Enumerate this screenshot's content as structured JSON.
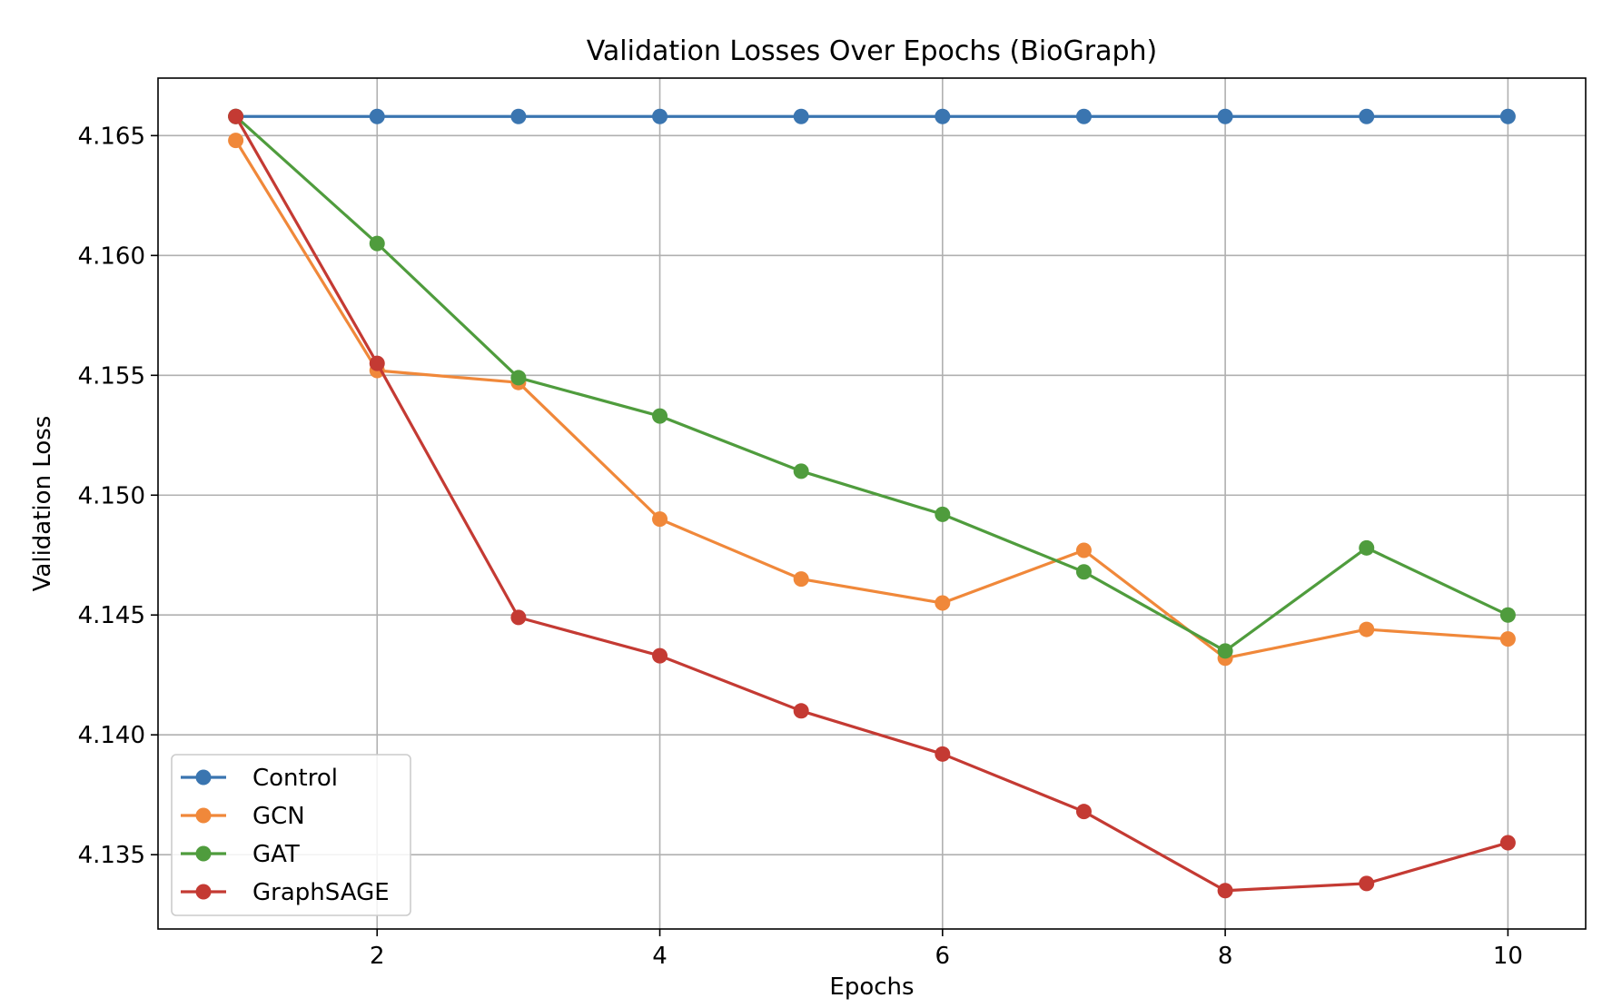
{
  "chart_data": {
    "type": "line",
    "title": "Validation Losses Over Epochs (BioGraph)",
    "xlabel": "Epochs",
    "ylabel": "Validation Loss",
    "x": [
      1,
      2,
      3,
      4,
      5,
      6,
      7,
      8,
      9,
      10
    ],
    "xlim": [
      0.45,
      10.55
    ],
    "ylim": [
      4.1319,
      4.1674
    ],
    "xticks": [
      2,
      4,
      6,
      8,
      10
    ],
    "yticks": [
      4.135,
      4.14,
      4.145,
      4.15,
      4.155,
      4.16,
      4.165
    ],
    "ytick_labels": [
      "4.135",
      "4.140",
      "4.145",
      "4.150",
      "4.155",
      "4.160",
      "4.165"
    ],
    "grid": true,
    "legend_position": "lower-left",
    "series": [
      {
        "name": "Control",
        "color": "#3a75b0",
        "values": [
          4.1658,
          4.1658,
          4.1658,
          4.1658,
          4.1658,
          4.1658,
          4.1658,
          4.1658,
          4.1658,
          4.1658
        ]
      },
      {
        "name": "GCN",
        "color": "#f0883a",
        "values": [
          4.1648,
          4.1552,
          4.1547,
          4.149,
          4.1465,
          4.1455,
          4.1477,
          4.1432,
          4.1444,
          4.144
        ]
      },
      {
        "name": "GAT",
        "color": "#4f9c3d",
        "values": [
          4.1658,
          4.1605,
          4.1549,
          4.1533,
          4.151,
          4.1492,
          4.1468,
          4.1435,
          4.1478,
          4.145
        ]
      },
      {
        "name": "GraphSAGE",
        "color": "#c43a33",
        "values": [
          4.1658,
          4.1555,
          4.1449,
          4.1433,
          4.141,
          4.1392,
          4.1368,
          4.1335,
          4.1338,
          4.1355
        ]
      }
    ]
  }
}
